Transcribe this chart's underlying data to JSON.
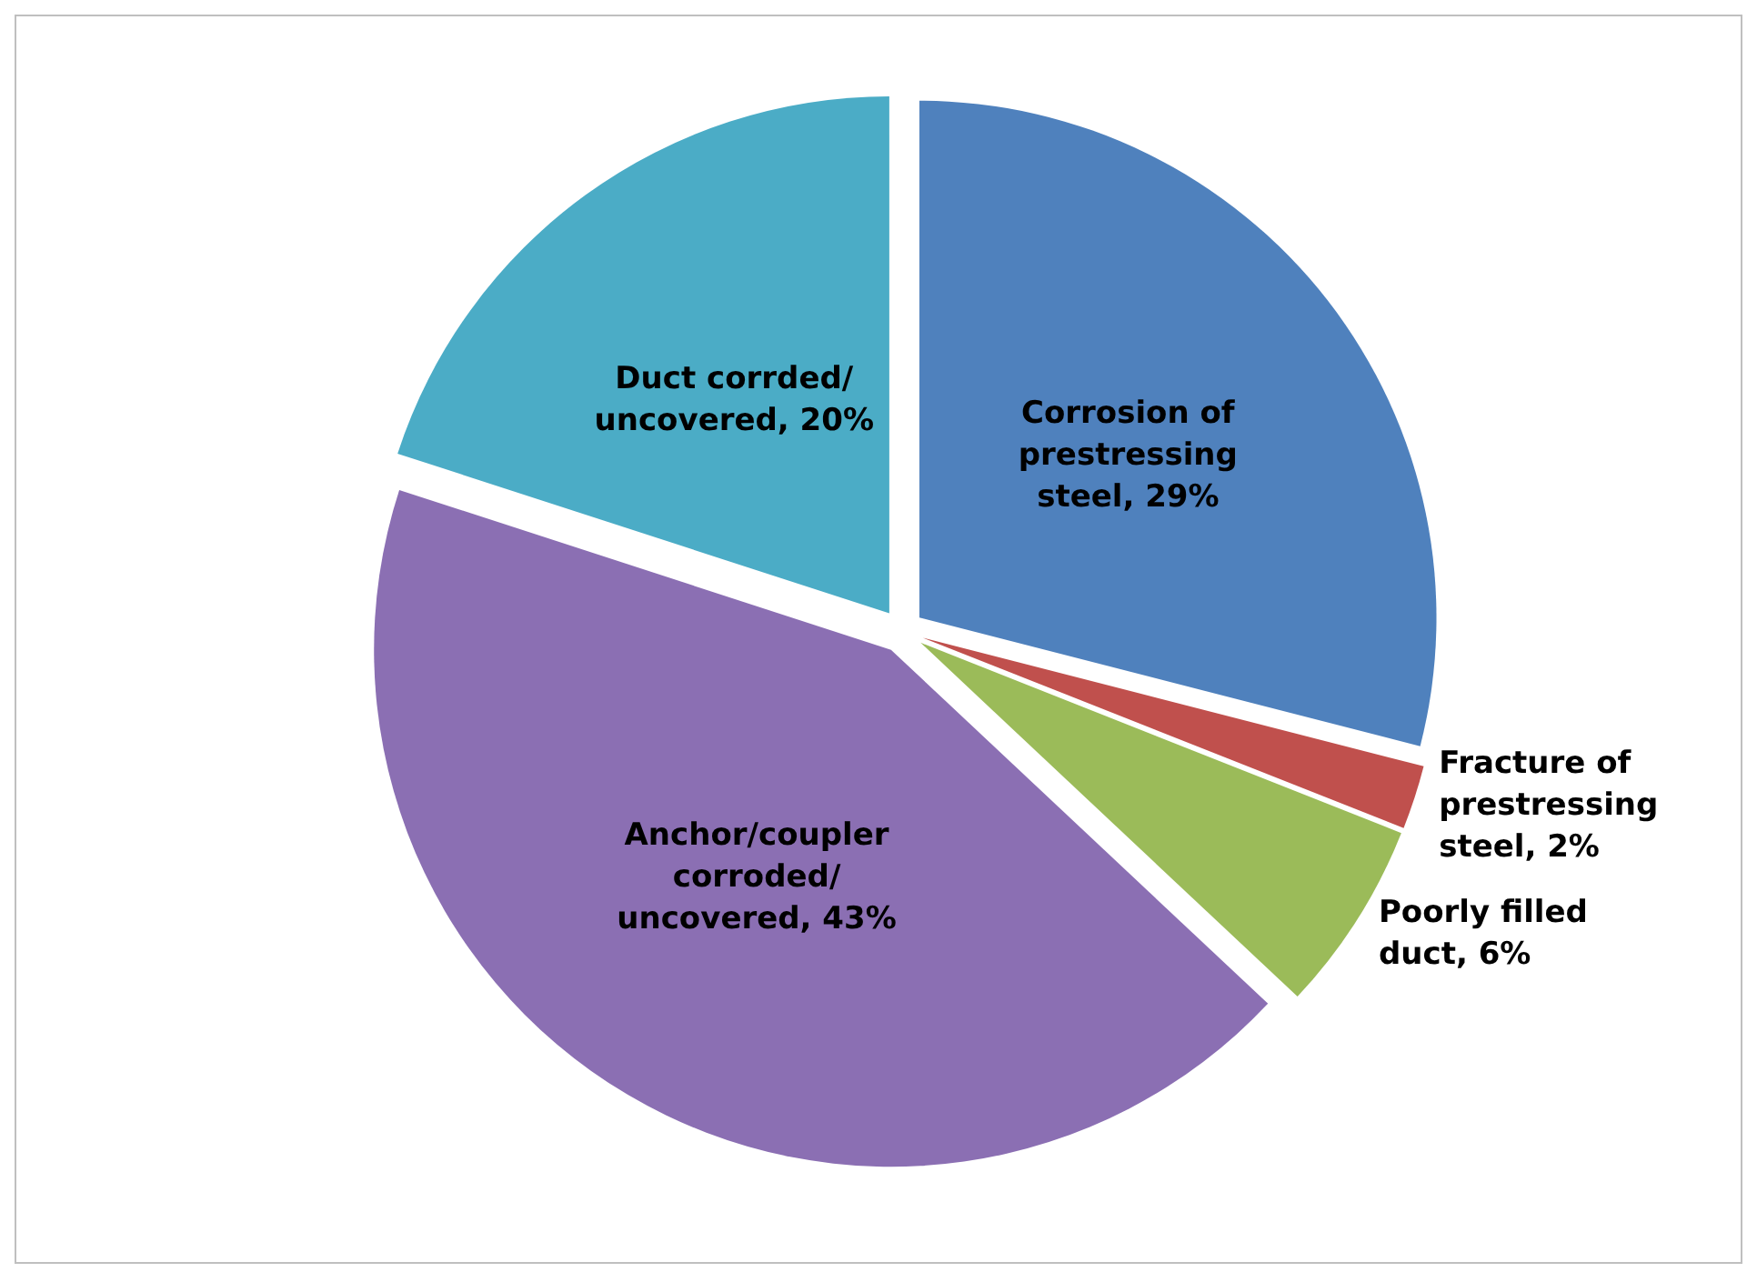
{
  "chart_data": {
    "type": "pie",
    "categories": [
      "Corrosion of prestressing steel",
      "Fracture of prestressing steel",
      "Poorly filled duct",
      "Anchor/coupler corroded/uncovered",
      "Duct corrded/uncovered"
    ],
    "values": [
      29,
      2,
      6,
      43,
      20
    ],
    "colors": [
      "#4f81bd",
      "#c0504d",
      "#9bbb59",
      "#8b6fb3",
      "#4bacc6"
    ],
    "value_labels": [
      "29%",
      "2%",
      "6%",
      "43%",
      "20%"
    ],
    "legend": false
  }
}
